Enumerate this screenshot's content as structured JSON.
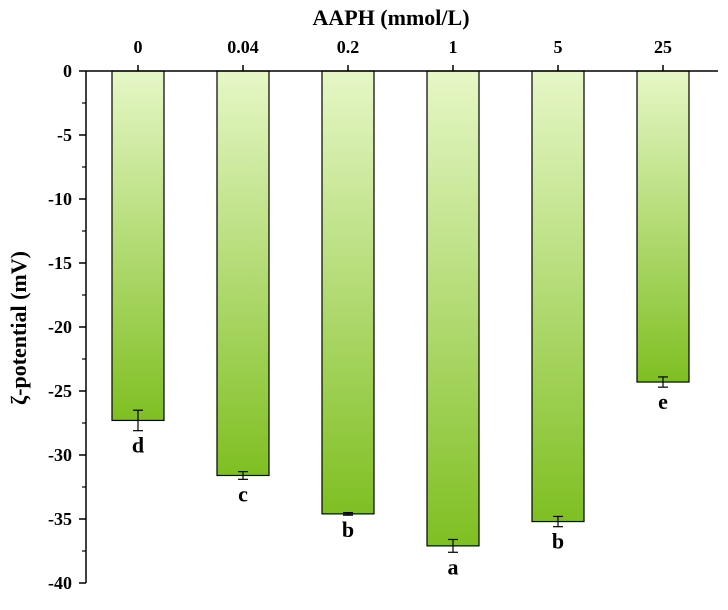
{
  "chart_data": {
    "type": "bar",
    "title": "AAPH (mmol/L)",
    "xlabel": "AAPH (mmol/L)",
    "ylabel": "ζ-potential (mV)",
    "categories": [
      "0",
      "0.04",
      "0.2",
      "1",
      "5",
      "25"
    ],
    "series": [
      {
        "values": [
          -27.3,
          -31.6,
          -34.6,
          -37.1,
          -35.2,
          -24.3
        ],
        "errors": [
          0.8,
          0.3,
          0.1,
          0.5,
          0.4,
          0.4
        ],
        "letters": [
          "d",
          "c",
          "b",
          "a",
          "b",
          "e"
        ]
      }
    ],
    "ylim": [
      -40,
      0
    ],
    "yticks": [
      0,
      -5,
      -10,
      -15,
      -20,
      -25,
      -30,
      -35,
      -40
    ],
    "ytick_labels": [
      "0",
      "-5",
      "-10",
      "-15",
      "-20",
      "-25",
      "-30",
      "-35",
      "-40"
    ],
    "x_axis_position": "top",
    "grid": false,
    "colors": {
      "bar_top": "#e6f7c6",
      "bar_bottom": "#7fbf22",
      "border": "#000000"
    }
  }
}
